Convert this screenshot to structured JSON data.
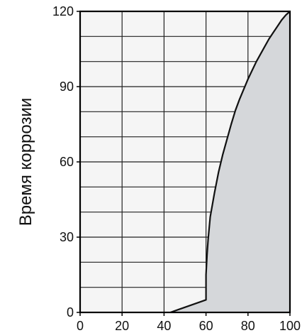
{
  "chart_data": {
    "type": "area",
    "title": "",
    "xlabel": "",
    "ylabel": "Время коррозии",
    "xlim": [
      0,
      100
    ],
    "ylim": [
      0,
      120
    ],
    "x_ticks": [
      0,
      20,
      40,
      60,
      80,
      100
    ],
    "y_ticks": [
      0,
      30,
      60,
      90,
      120
    ],
    "x_tick_labels": [
      "0",
      "20",
      "40",
      "60",
      "80",
      "100"
    ],
    "y_tick_labels": [
      "0",
      "30",
      "60",
      "90",
      "120"
    ],
    "grid": true,
    "grid_x_step": 20,
    "grid_y_step": 10,
    "legend": "none",
    "series": [
      {
        "x": [
          43,
          60,
          60,
          60.5,
          61,
          62,
          64,
          66,
          68,
          70,
          72,
          74,
          76,
          78,
          80,
          82,
          84,
          86,
          88,
          90,
          92,
          94,
          96,
          98,
          100
        ],
        "y": [
          0,
          5,
          15,
          23,
          29,
          38,
          47.5,
          56,
          63,
          69,
          75,
          80.5,
          85,
          89,
          93,
          96.5,
          100,
          103,
          106,
          109,
          111.5,
          114,
          116.5,
          118.5,
          120
        ]
      }
    ],
    "colors": {
      "plot_background": "#f5f5f5",
      "fill": "#d5d7da",
      "line": "#111111",
      "grid": "#222222",
      "axis": "#000000"
    }
  }
}
